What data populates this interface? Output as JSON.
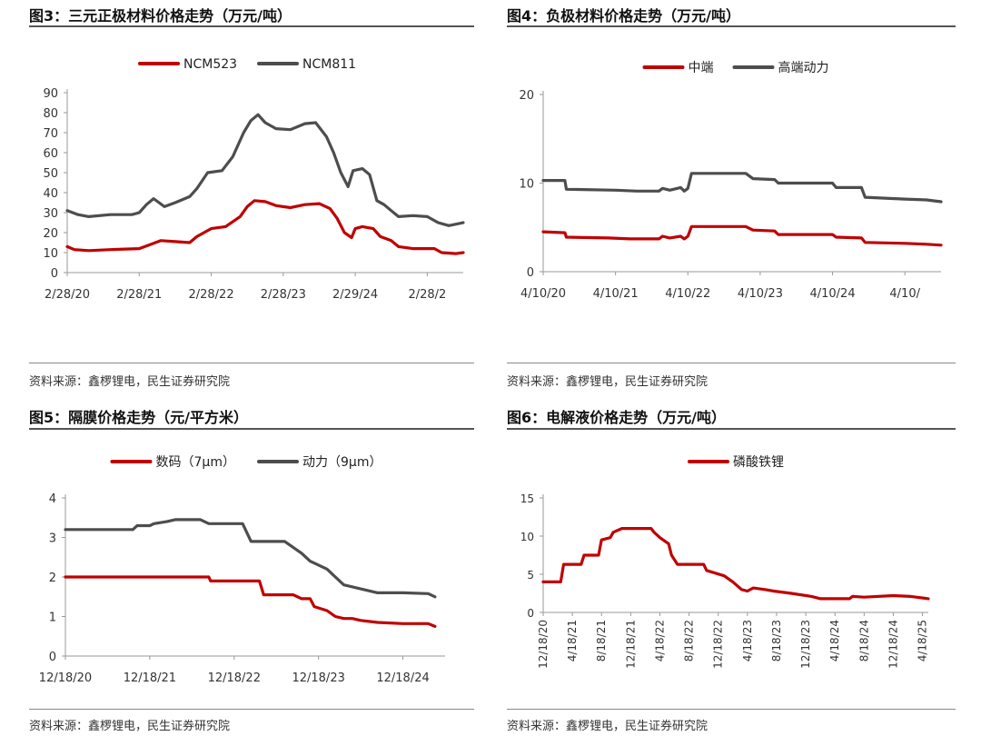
{
  "source_text": "资料来源：鑫椤锂电，民生证券研究院",
  "colors": {
    "red": "#c00000",
    "gray": "#4d4d4d"
  },
  "chart_data": [
    {
      "id": "fig3",
      "title": "图3：三元正极材料价格走势（万元/吨）",
      "type": "line",
      "x_tick_labels": [
        "2/28/20",
        "2/28/21",
        "2/28/22",
        "2/28/23",
        "2/29/24",
        "2/28/2"
      ],
      "ylim": [
        0,
        90
      ],
      "y_ticks": [
        0,
        10,
        20,
        30,
        40,
        50,
        60,
        70,
        80,
        90
      ],
      "xlim": [
        0,
        5.5
      ],
      "series": [
        {
          "name": "NCM523",
          "color": "#c00000",
          "points": [
            [
              0,
              13
            ],
            [
              0.1,
              11.5
            ],
            [
              0.3,
              11
            ],
            [
              0.6,
              11.5
            ],
            [
              1.0,
              12
            ],
            [
              1.15,
              14
            ],
            [
              1.3,
              16
            ],
            [
              1.5,
              15.5
            ],
            [
              1.7,
              15
            ],
            [
              1.8,
              18
            ],
            [
              2.0,
              22
            ],
            [
              2.2,
              23
            ],
            [
              2.4,
              28
            ],
            [
              2.5,
              33
            ],
            [
              2.6,
              36
            ],
            [
              2.75,
              35.5
            ],
            [
              2.9,
              33.5
            ],
            [
              3.1,
              32.5
            ],
            [
              3.3,
              34
            ],
            [
              3.5,
              34.5
            ],
            [
              3.65,
              32
            ],
            [
              3.75,
              27
            ],
            [
              3.85,
              20
            ],
            [
              3.95,
              17.5
            ],
            [
              4.0,
              22
            ],
            [
              4.1,
              23
            ],
            [
              4.25,
              22
            ],
            [
              4.35,
              18
            ],
            [
              4.5,
              16
            ],
            [
              4.6,
              13
            ],
            [
              4.8,
              12
            ],
            [
              5.1,
              12
            ],
            [
              5.2,
              10
            ],
            [
              5.4,
              9.5
            ],
            [
              5.5,
              10
            ]
          ]
        },
        {
          "name": "NCM811",
          "color": "#4d4d4d",
          "points": [
            [
              0,
              31
            ],
            [
              0.15,
              29
            ],
            [
              0.3,
              28
            ],
            [
              0.6,
              29
            ],
            [
              0.9,
              29
            ],
            [
              1.0,
              30
            ],
            [
              1.1,
              34
            ],
            [
              1.2,
              37
            ],
            [
              1.35,
              33
            ],
            [
              1.5,
              35
            ],
            [
              1.7,
              38
            ],
            [
              1.8,
              42
            ],
            [
              1.95,
              50
            ],
            [
              2.15,
              51
            ],
            [
              2.3,
              58
            ],
            [
              2.45,
              70
            ],
            [
              2.55,
              76
            ],
            [
              2.65,
              79
            ],
            [
              2.75,
              75
            ],
            [
              2.9,
              72
            ],
            [
              3.1,
              71.5
            ],
            [
              3.3,
              74.5
            ],
            [
              3.45,
              75
            ],
            [
              3.6,
              68
            ],
            [
              3.7,
              60
            ],
            [
              3.8,
              50
            ],
            [
              3.9,
              43
            ],
            [
              3.97,
              51
            ],
            [
              4.1,
              52
            ],
            [
              4.2,
              49
            ],
            [
              4.3,
              36
            ],
            [
              4.4,
              34
            ],
            [
              4.5,
              31
            ],
            [
              4.6,
              28
            ],
            [
              4.8,
              28.5
            ],
            [
              5.0,
              28
            ],
            [
              5.15,
              25
            ],
            [
              5.3,
              23.5
            ],
            [
              5.5,
              25
            ]
          ]
        }
      ]
    },
    {
      "id": "fig4",
      "title": "图4：负极材料价格走势（万元/吨）",
      "type": "line",
      "x_tick_labels": [
        "4/10/20",
        "4/10/21",
        "4/10/22",
        "4/10/23",
        "4/10/24",
        "4/10/"
      ],
      "ylim": [
        0,
        20
      ],
      "y_ticks": [
        0,
        10,
        20
      ],
      "xlim": [
        0,
        5.5
      ],
      "series": [
        {
          "name": "中端",
          "color": "#c00000",
          "points": [
            [
              0,
              4.5
            ],
            [
              0.3,
              4.4
            ],
            [
              0.32,
              3.9
            ],
            [
              0.9,
              3.8
            ],
            [
              1.2,
              3.7
            ],
            [
              1.6,
              3.7
            ],
            [
              1.65,
              4.0
            ],
            [
              1.75,
              3.8
            ],
            [
              1.9,
              4.0
            ],
            [
              1.95,
              3.7
            ],
            [
              2.0,
              4.0
            ],
            [
              2.05,
              5.1
            ],
            [
              2.8,
              5.1
            ],
            [
              2.9,
              4.7
            ],
            [
              3.2,
              4.6
            ],
            [
              3.25,
              4.2
            ],
            [
              4.0,
              4.2
            ],
            [
              4.05,
              3.9
            ],
            [
              4.4,
              3.8
            ],
            [
              4.45,
              3.3
            ],
            [
              5.0,
              3.2
            ],
            [
              5.3,
              3.1
            ],
            [
              5.5,
              3.0
            ]
          ]
        },
        {
          "name": "高端动力",
          "color": "#4d4d4d",
          "points": [
            [
              0,
              10.3
            ],
            [
              0.3,
              10.3
            ],
            [
              0.32,
              9.3
            ],
            [
              1.0,
              9.2
            ],
            [
              1.3,
              9.1
            ],
            [
              1.6,
              9.1
            ],
            [
              1.65,
              9.4
            ],
            [
              1.75,
              9.2
            ],
            [
              1.9,
              9.5
            ],
            [
              1.95,
              9.1
            ],
            [
              2.0,
              9.4
            ],
            [
              2.05,
              11.1
            ],
            [
              2.8,
              11.1
            ],
            [
              2.9,
              10.5
            ],
            [
              3.2,
              10.4
            ],
            [
              3.25,
              10.0
            ],
            [
              4.0,
              10.0
            ],
            [
              4.05,
              9.5
            ],
            [
              4.4,
              9.5
            ],
            [
              4.45,
              8.4
            ],
            [
              5.0,
              8.2
            ],
            [
              5.3,
              8.1
            ],
            [
              5.5,
              7.9
            ]
          ]
        }
      ]
    },
    {
      "id": "fig5",
      "title": "图5：隔膜价格走势（元/平方米）",
      "type": "line",
      "x_tick_labels": [
        "12/18/20",
        "12/18/21",
        "12/18/22",
        "12/18/23",
        "12/18/24"
      ],
      "ylim": [
        0,
        4
      ],
      "y_ticks": [
        0,
        1,
        2,
        3,
        4
      ],
      "xlim": [
        0,
        4.5
      ],
      "series": [
        {
          "name": "数码（7μm）",
          "color": "#c00000",
          "points": [
            [
              0,
              2.0
            ],
            [
              1.7,
              2.0
            ],
            [
              1.72,
              1.9
            ],
            [
              2.3,
              1.9
            ],
            [
              2.35,
              1.55
            ],
            [
              2.7,
              1.55
            ],
            [
              2.8,
              1.45
            ],
            [
              2.9,
              1.45
            ],
            [
              2.95,
              1.25
            ],
            [
              3.1,
              1.15
            ],
            [
              3.2,
              1.0
            ],
            [
              3.3,
              0.95
            ],
            [
              3.4,
              0.95
            ],
            [
              3.5,
              0.9
            ],
            [
              3.7,
              0.85
            ],
            [
              4.0,
              0.82
            ],
            [
              4.3,
              0.82
            ],
            [
              4.38,
              0.75
            ]
          ]
        },
        {
          "name": "动力（9μm）",
          "color": "#4d4d4d",
          "points": [
            [
              0,
              3.2
            ],
            [
              0.8,
              3.2
            ],
            [
              0.85,
              3.3
            ],
            [
              1.0,
              3.3
            ],
            [
              1.05,
              3.35
            ],
            [
              1.2,
              3.4
            ],
            [
              1.3,
              3.45
            ],
            [
              1.6,
              3.45
            ],
            [
              1.7,
              3.35
            ],
            [
              2.1,
              3.35
            ],
            [
              2.2,
              2.9
            ],
            [
              2.6,
              2.9
            ],
            [
              2.8,
              2.6
            ],
            [
              2.9,
              2.4
            ],
            [
              3.0,
              2.3
            ],
            [
              3.1,
              2.2
            ],
            [
              3.2,
              2.0
            ],
            [
              3.3,
              1.8
            ],
            [
              3.5,
              1.7
            ],
            [
              3.7,
              1.6
            ],
            [
              4.0,
              1.6
            ],
            [
              4.3,
              1.58
            ],
            [
              4.38,
              1.5
            ]
          ]
        }
      ]
    },
    {
      "id": "fig6",
      "title": "图6：电解液价格走势（万元/吨）",
      "type": "line",
      "x_tick_labels": [
        "12/18/20",
        "4/18/21",
        "8/18/21",
        "12/18/21",
        "4/18/22",
        "8/18/22",
        "12/18/22",
        "4/18/23",
        "8/18/23",
        "12/18/23",
        "4/18/24",
        "8/18/24",
        "12/18/24",
        "4/18/25"
      ],
      "ylim": [
        0,
        15
      ],
      "y_ticks": [
        0,
        5,
        10,
        15
      ],
      "xlim": [
        0,
        13.2
      ],
      "series": [
        {
          "name": "磷酸铁锂",
          "color": "#c00000",
          "points": [
            [
              0,
              4.0
            ],
            [
              0.6,
              4.0
            ],
            [
              0.7,
              6.3
            ],
            [
              1.3,
              6.3
            ],
            [
              1.4,
              7.5
            ],
            [
              1.9,
              7.5
            ],
            [
              2.0,
              9.5
            ],
            [
              2.3,
              9.8
            ],
            [
              2.4,
              10.5
            ],
            [
              2.7,
              11.0
            ],
            [
              3.7,
              11.0
            ],
            [
              3.8,
              10.5
            ],
            [
              4.0,
              9.8
            ],
            [
              4.3,
              9.0
            ],
            [
              4.4,
              7.5
            ],
            [
              4.6,
              6.3
            ],
            [
              5.5,
              6.3
            ],
            [
              5.6,
              5.5
            ],
            [
              6.2,
              4.8
            ],
            [
              6.5,
              4.0
            ],
            [
              6.8,
              3.0
            ],
            [
              7.0,
              2.8
            ],
            [
              7.2,
              3.2
            ],
            [
              7.6,
              3.0
            ],
            [
              7.9,
              2.8
            ],
            [
              8.5,
              2.5
            ],
            [
              9.2,
              2.1
            ],
            [
              9.5,
              1.8
            ],
            [
              10.5,
              1.8
            ],
            [
              10.6,
              2.1
            ],
            [
              11,
              2.0
            ],
            [
              12.0,
              2.2
            ],
            [
              12.6,
              2.1
            ],
            [
              13.2,
              1.8
            ]
          ]
        }
      ]
    }
  ]
}
